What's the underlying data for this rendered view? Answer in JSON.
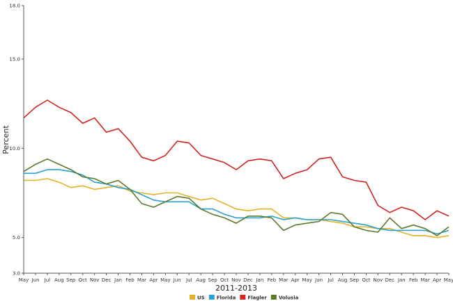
{
  "chart_data": {
    "type": "line",
    "title": "",
    "xlabel": "2011-2013",
    "ylabel": "Percent",
    "ylim": [
      3.0,
      18.0
    ],
    "yticks": [
      "3.0",
      "5.0",
      "10.0",
      "15.0",
      "18.0"
    ],
    "grid": false,
    "legend_position": "bottom",
    "categories": [
      "May",
      "Jun",
      "Jul",
      "Aug",
      "Sep",
      "Oct",
      "Nov",
      "Dec",
      "Jan",
      "Feb",
      "Mar",
      "Apr",
      "May",
      "Jun",
      "Jul",
      "Aug",
      "Sep",
      "Oct",
      "Nov",
      "Dec",
      "Jan",
      "Feb",
      "Mar",
      "Apr",
      "May",
      "Jun",
      "Jul",
      "Aug",
      "Sep",
      "Oct",
      "Nov",
      "Dec",
      "Jan",
      "Feb",
      "Mar",
      "Apr",
      "May"
    ],
    "series": [
      {
        "name": "US",
        "color": "#e3b226",
        "values": [
          8.2,
          8.2,
          8.3,
          8.1,
          7.8,
          7.9,
          7.7,
          7.8,
          7.9,
          7.6,
          7.5,
          7.4,
          7.5,
          7.5,
          7.3,
          7.1,
          7.2,
          6.9,
          6.6,
          6.5,
          6.6,
          6.6,
          6.1,
          6.1,
          6.0,
          6.0,
          5.9,
          5.8,
          5.6,
          5.6,
          5.5,
          5.5,
          5.3,
          5.1,
          5.1,
          5.0,
          5.1
        ]
      },
      {
        "name": "Florida",
        "color": "#2a9fd0",
        "values": [
          8.6,
          8.6,
          8.8,
          8.8,
          8.7,
          8.5,
          8.1,
          8.0,
          7.8,
          7.7,
          7.4,
          7.1,
          7.0,
          7.0,
          7.0,
          6.6,
          6.6,
          6.3,
          6.1,
          6.1,
          6.1,
          6.2,
          6.0,
          6.1,
          6.0,
          6.0,
          6.0,
          5.9,
          5.8,
          5.7,
          5.5,
          5.4,
          5.4,
          5.4,
          5.4,
          5.2,
          5.4
        ]
      },
      {
        "name": "Flagler",
        "color": "#d02322",
        "values": [
          11.7,
          12.3,
          12.7,
          12.3,
          12.0,
          11.4,
          11.7,
          10.9,
          11.1,
          10.4,
          9.5,
          9.3,
          9.6,
          10.4,
          10.3,
          9.6,
          9.4,
          9.2,
          8.8,
          9.3,
          9.4,
          9.3,
          8.3,
          8.6,
          8.8,
          9.4,
          9.5,
          8.4,
          8.2,
          8.1,
          6.8,
          6.4,
          6.7,
          6.5,
          6.0,
          6.5,
          6.2
        ]
      },
      {
        "name": "Volusia",
        "color": "#5a7a2a",
        "values": [
          8.7,
          9.1,
          9.4,
          9.1,
          8.8,
          8.4,
          8.3,
          8.0,
          8.2,
          7.7,
          6.9,
          6.7,
          7.0,
          7.3,
          7.2,
          6.6,
          6.3,
          6.1,
          5.8,
          6.2,
          6.2,
          6.1,
          5.4,
          5.7,
          5.8,
          5.9,
          6.4,
          6.3,
          5.6,
          5.4,
          5.3,
          6.1,
          5.5,
          5.7,
          5.5,
          5.1,
          5.6
        ]
      }
    ]
  }
}
